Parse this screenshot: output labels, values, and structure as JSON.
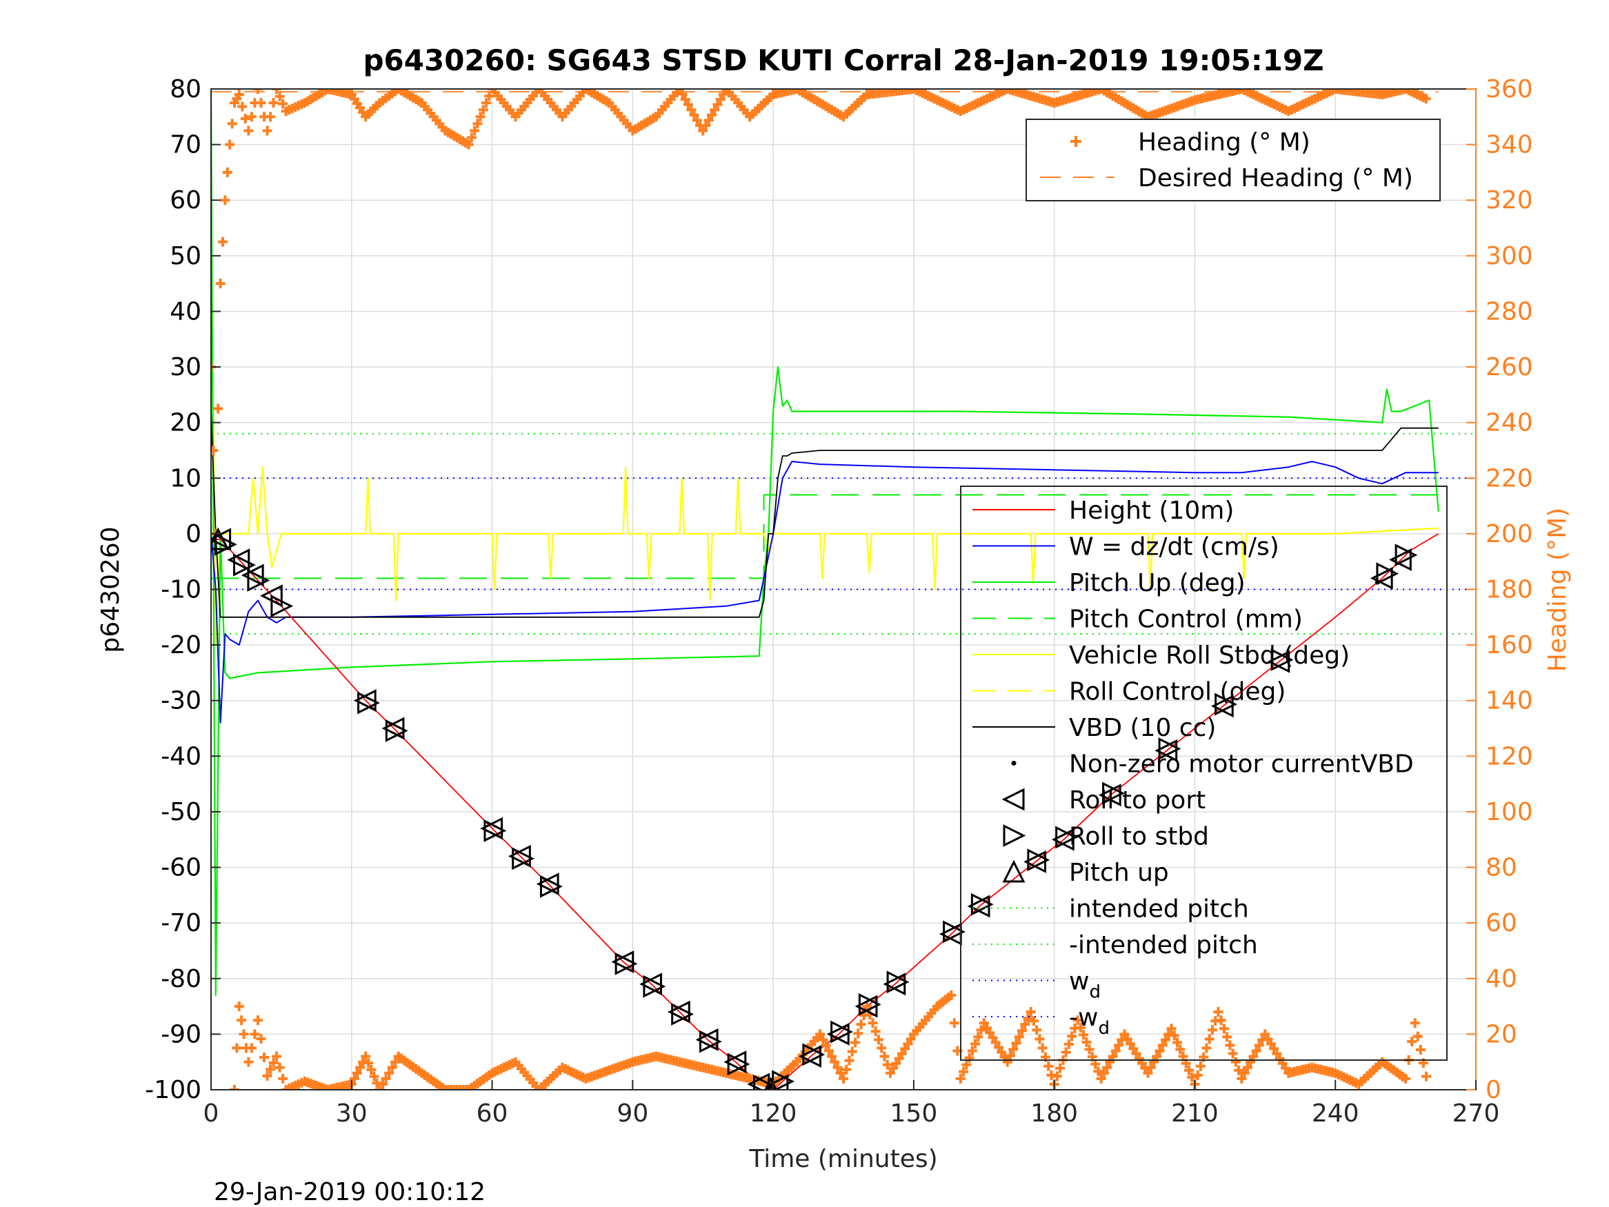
{
  "chart_data": {
    "type": "line",
    "title": "p6430260: SG643 STSD KUTI Corral 28-Jan-2019 19:05:19Z",
    "xlabel": "Time (minutes)",
    "ylabel": "p6430260",
    "y2label": "Heading (°M)",
    "footer": "29-Jan-2019 00:10:12",
    "xlim": [
      0,
      270
    ],
    "ylim": [
      -100,
      80
    ],
    "y2lim": [
      0,
      360
    ],
    "xticks": [
      0,
      30,
      60,
      90,
      120,
      150,
      180,
      210,
      240,
      270
    ],
    "yticks": [
      -100,
      -90,
      -80,
      -70,
      -60,
      -50,
      -40,
      -30,
      -20,
      -10,
      0,
      10,
      20,
      30,
      40,
      50,
      60,
      70,
      80
    ],
    "y2ticks": [
      0,
      20,
      40,
      60,
      80,
      100,
      120,
      140,
      160,
      180,
      200,
      220,
      240,
      260,
      280,
      300,
      320,
      340,
      360
    ],
    "grid": true,
    "colors": {
      "height": "#ff0000",
      "w": "#0000ff",
      "pitch": "#00ee00",
      "roll": "#ffff00",
      "vbd": "#000000",
      "heading": "#ff7f1f",
      "axis_right": "#ff7f1f"
    },
    "legend_heading": [
      {
        "label": "Heading (° M)",
        "style": "plus"
      },
      {
        "label": "Desired Heading (° M)",
        "style": "dash"
      }
    ],
    "legend_main": [
      {
        "label": "Height (10m)",
        "style": "solid",
        "color": "#ff0000"
      },
      {
        "label": "W = dz/dt (cm/s)",
        "style": "solid",
        "color": "#0000ff"
      },
      {
        "label": "Pitch Up (deg)",
        "style": "solid",
        "color": "#00ee00"
      },
      {
        "label": "Pitch Control (mm)",
        "style": "dash",
        "color": "#00ee00"
      },
      {
        "label": "Vehicle Roll Stbd (deg)",
        "style": "solid",
        "color": "#ffff00"
      },
      {
        "label": "Roll Control (deg)",
        "style": "dash",
        "color": "#ffff00"
      },
      {
        "label": "VBD (10 cc)",
        "style": "solid",
        "color": "#000000"
      },
      {
        "label": "Non-zero motor currentVBD",
        "style": "dot",
        "color": "#000000"
      },
      {
        "label": "Roll to port",
        "style": "tri-left",
        "color": "#000000"
      },
      {
        "label": "Roll to stbd",
        "style": "tri-right",
        "color": "#000000"
      },
      {
        "label": "Pitch up",
        "style": "tri-up",
        "color": "#000000"
      },
      {
        "label": "intended pitch",
        "style": "dotted",
        "color": "#00ee00"
      },
      {
        "label": "-intended pitch",
        "style": "dotted",
        "color": "#00ee00"
      },
      {
        "label": "w",
        "sub": "d",
        "style": "dotted",
        "color": "#0000ff"
      },
      {
        "label": "-w",
        "sub": "d",
        "style": "dotted",
        "color": "#0000ff"
      }
    ],
    "series": [
      {
        "name": "Height (10m)",
        "x": [
          0,
          2,
          15,
          33,
          39,
          60,
          66,
          72,
          88,
          94,
          100,
          106,
          112,
          117,
          120,
          128,
          134,
          140,
          146,
          158,
          164,
          176,
          182,
          192,
          204,
          216,
          228,
          240,
          250,
          256,
          262
        ],
        "y": [
          -1,
          -1,
          -13,
          -30,
          -35,
          -53,
          -58,
          -63,
          -77,
          -81,
          -86,
          -91,
          -95,
          -99,
          -100,
          -94,
          -90,
          -85,
          -81,
          -72,
          -67,
          -59,
          -55,
          -47,
          -39,
          -31,
          -23,
          -15,
          -8,
          -3,
          0
        ]
      },
      {
        "name": "W = dz/dt (cm/s)",
        "x": [
          0,
          1,
          2,
          3,
          4,
          6,
          8,
          10,
          12,
          14,
          16,
          30,
          60,
          90,
          100,
          110,
          117,
          118,
          120,
          122,
          124,
          130,
          150,
          180,
          210,
          220,
          230,
          235,
          240,
          245,
          250,
          255,
          262
        ],
        "y": [
          0,
          -10,
          -34,
          -18,
          -19,
          -20,
          -14,
          -12,
          -15,
          -16,
          -15,
          -15,
          -14.5,
          -14,
          -13.5,
          -13,
          -12,
          -8,
          0,
          10,
          13,
          12.5,
          12,
          11.5,
          11,
          11,
          12,
          13,
          12,
          10,
          9,
          11,
          11
        ]
      },
      {
        "name": "Pitch Up (deg)",
        "x": [
          0,
          1,
          2,
          3,
          4,
          10,
          30,
          60,
          90,
          117,
          118,
          119,
          120,
          121,
          122,
          123,
          124,
          130,
          160,
          200,
          230,
          250,
          251,
          252,
          254,
          260,
          262
        ],
        "y": [
          80,
          -83,
          0,
          -25,
          -26,
          -25,
          -24,
          -23,
          -22.5,
          -22,
          -8,
          0,
          22,
          30,
          23,
          24,
          22,
          22,
          22,
          21.5,
          21,
          20,
          26,
          22,
          22,
          24,
          4
        ]
      },
      {
        "name": "Pitch Control (mm)",
        "x": [
          0,
          118,
          118,
          262
        ],
        "y": [
          -8,
          -8,
          7,
          7
        ]
      },
      {
        "name": "Vehicle Roll Stbd (deg)",
        "x": [
          0,
          1,
          2,
          8,
          9,
          10,
          11,
          12,
          13,
          15,
          33,
          33.5,
          34,
          39,
          39.5,
          40,
          60,
          60.5,
          61,
          72,
          72.5,
          73,
          88,
          88.5,
          89,
          93,
          93.5,
          94,
          100,
          100.5,
          101,
          106,
          106.5,
          107,
          112,
          112.5,
          113,
          118,
          119,
          120,
          130,
          130.5,
          131,
          140,
          140.5,
          141,
          154,
          154.5,
          155,
          175,
          175.5,
          176,
          200,
          200.5,
          201,
          220,
          220.5,
          221,
          240,
          262
        ],
        "y": [
          60,
          -20,
          0,
          0,
          10,
          0,
          12,
          0,
          -6,
          0,
          0,
          10,
          0,
          0,
          -12,
          0,
          0,
          -10,
          0,
          0,
          -8,
          0,
          0,
          12,
          0,
          0,
          -8,
          0,
          0,
          10,
          0,
          0,
          -12,
          0,
          0,
          10,
          0,
          0,
          -3,
          0,
          0,
          -8,
          0,
          0,
          -7,
          0,
          0,
          -10,
          0,
          0,
          -9,
          0,
          0,
          -10,
          0,
          0,
          -8,
          0,
          0,
          1
        ]
      },
      {
        "name": "VBD (10 cc)",
        "x": [
          0,
          1,
          2,
          117,
          118,
          119,
          120,
          121,
          122,
          123,
          124,
          130,
          250,
          251,
          252,
          254,
          262
        ],
        "y": [
          22,
          0,
          -15,
          -15,
          -12,
          0,
          0,
          10,
          14,
          14,
          14.5,
          15,
          15,
          16,
          17,
          19,
          19
        ]
      },
      {
        "name": "Heading (° M)",
        "x": [
          0,
          1,
          2,
          3,
          4,
          5,
          6,
          8,
          10,
          12,
          14,
          16,
          20,
          25,
          30,
          33,
          36,
          40,
          45,
          50,
          55,
          60,
          65,
          70,
          75,
          80,
          85,
          90,
          95,
          100,
          105,
          110,
          115,
          120,
          125,
          130,
          135,
          140,
          150,
          160,
          170,
          180,
          190,
          200,
          210,
          220,
          230,
          240,
          250,
          255,
          260
        ],
        "y": [
          260,
          200,
          290,
          320,
          340,
          355,
          358,
          345,
          360,
          345,
          360,
          352,
          355,
          360,
          358,
          350,
          355,
          360,
          355,
          345,
          340,
          360,
          350,
          360,
          350,
          360,
          355,
          345,
          350,
          360,
          345,
          360,
          350,
          358,
          360,
          355,
          350,
          358,
          360,
          352,
          360,
          355,
          360,
          350,
          356,
          360,
          352,
          360,
          358,
          360,
          356
        ]
      },
      {
        "name": "Heading low",
        "x": [
          5,
          6,
          7,
          8,
          10,
          12,
          14,
          16,
          20,
          25,
          30,
          33,
          36,
          40,
          45,
          50,
          55,
          60,
          65,
          70,
          75,
          80,
          85,
          90,
          95,
          100,
          105,
          110,
          115,
          120,
          125,
          130,
          135,
          140,
          145,
          150,
          155,
          158,
          160,
          165,
          170,
          175,
          180,
          185,
          190,
          195,
          200,
          205,
          210,
          215,
          220,
          225,
          230,
          235,
          240,
          245,
          250,
          255,
          257,
          260
        ],
        "y": [
          0,
          30,
          20,
          10,
          25,
          5,
          12,
          0,
          3,
          0,
          2,
          12,
          0,
          12,
          6,
          0,
          0,
          6,
          10,
          0,
          8,
          4,
          7,
          10,
          12,
          10,
          8,
          6,
          4,
          2,
          10,
          20,
          4,
          30,
          6,
          20,
          30,
          34,
          4,
          24,
          10,
          28,
          2,
          25,
          4,
          20,
          6,
          22,
          2,
          28,
          4,
          20,
          6,
          8,
          6,
          2,
          10,
          4,
          24,
          0
        ]
      },
      {
        "name": "Desired Heading (° M)",
        "x": [
          0,
          262
        ],
        "y": [
          359,
          359
        ]
      }
    ],
    "reference_lines": {
      "intended_pitch": 18,
      "neg_intended_pitch": -18,
      "w_d": 10,
      "neg_w_d": -10
    },
    "markers": {
      "roll_port_x": [
        2,
        6,
        9,
        13,
        33,
        39,
        60,
        66,
        72,
        88,
        94,
        100,
        106,
        112,
        117,
        121,
        128,
        134,
        140,
        146,
        158,
        164,
        176,
        182,
        192,
        204,
        216,
        228,
        250,
        254
      ],
      "roll_stbd_x": [
        3,
        7,
        10,
        15,
        33.5,
        39.5,
        60.5,
        66.5,
        72.5,
        88.5,
        94.5,
        100.5,
        106.5,
        112.5,
        118,
        122,
        128.5,
        134.5,
        140.5,
        146.5,
        158.5,
        164.5,
        176.5,
        182.5,
        192.5,
        204.5,
        216.5,
        228.5,
        251,
        255
      ],
      "pitch_up_x": [
        1.5,
        119.5
      ],
      "motor_x": [
        249
      ]
    }
  }
}
